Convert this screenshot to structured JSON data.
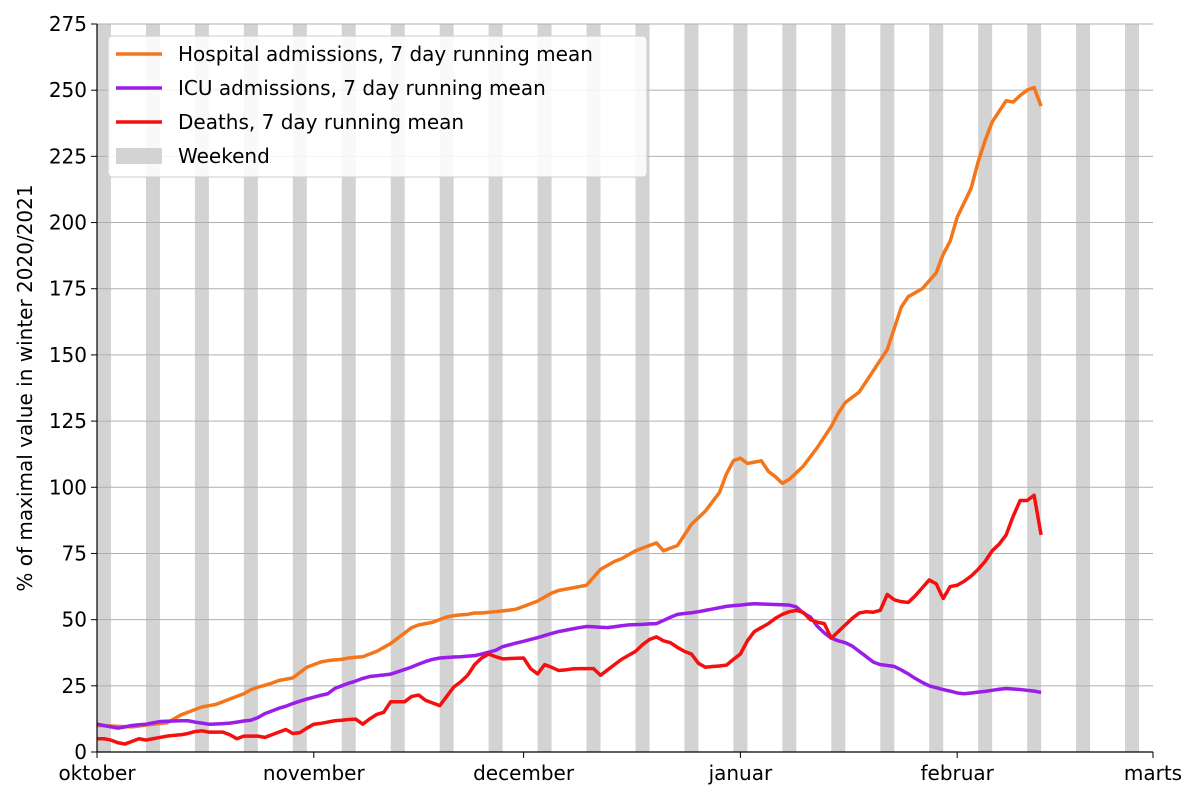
{
  "chart_data": {
    "type": "line",
    "ylabel": "% of maximal value in winter 2020/2021",
    "xlim": [
      0,
      151
    ],
    "xticks": [
      {
        "value": 0,
        "label": "oktober"
      },
      {
        "value": 31,
        "label": "november"
      },
      {
        "value": 61,
        "label": "december"
      },
      {
        "value": 92,
        "label": "januar"
      },
      {
        "value": 123,
        "label": "februar"
      },
      {
        "value": 151,
        "label": "marts"
      }
    ],
    "ylim": [
      0,
      275
    ],
    "yticks": [
      0,
      25,
      50,
      75,
      100,
      125,
      150,
      175,
      200,
      225,
      250,
      275
    ],
    "grid": true,
    "legend": "upper left",
    "weekend": {
      "name": "Weekend",
      "color": "#d3d3d3",
      "days": 2,
      "starts": [
        0,
        7,
        14,
        21,
        28,
        35,
        42,
        49,
        56,
        63,
        70,
        77,
        84,
        91,
        98,
        105,
        112,
        119,
        126,
        133,
        140,
        147
      ]
    },
    "series": [
      {
        "name": "Hospital admissions, 7 day running mean",
        "color": "#f5761a",
        "values": [
          10,
          9.9,
          9.8,
          9.7,
          9.6,
          9.5,
          9.8,
          10.2,
          10.5,
          10.8,
          11,
          12.5,
          14,
          15,
          16,
          17,
          17.5,
          18,
          19,
          20,
          21,
          22,
          23.5,
          24.5,
          25.2,
          26,
          27,
          27.5,
          28,
          30,
          32,
          33,
          34,
          34.5,
          34.8,
          35,
          35.5,
          35.8,
          36,
          37,
          38,
          39.5,
          41,
          43,
          45,
          47,
          48,
          48.5,
          49,
          50,
          51,
          51.5,
          51.8,
          52,
          52.5,
          52.5,
          52.8,
          53,
          53.3,
          53.6,
          54,
          55,
          56,
          57,
          58.5,
          60,
          61,
          61.5,
          62,
          62.5,
          63,
          66,
          69,
          70.5,
          72,
          73,
          74.5,
          76,
          77,
          78,
          79,
          76,
          77,
          78,
          82,
          86,
          88.5,
          91,
          94.5,
          98,
          105,
          110,
          111,
          109,
          109.5,
          110,
          106,
          104,
          101.5,
          103,
          105.5,
          108,
          111.5,
          115,
          119,
          123,
          128,
          132,
          134,
          136,
          140,
          144,
          148,
          152,
          160,
          168,
          172,
          173.5,
          175,
          178,
          181,
          188,
          193,
          202,
          207.5,
          213,
          223,
          231,
          238,
          242,
          246,
          245.5,
          248,
          250,
          251,
          244
        ]
      },
      {
        "name": "ICU admissions, 7 day running mean",
        "color": "#9b1ee8",
        "values": [
          10.5,
          10,
          9.5,
          9,
          9.5,
          10,
          10.3,
          10.5,
          11,
          11.5,
          11.6,
          11.7,
          11.8,
          11.8,
          11.3,
          10.9,
          10.5,
          10.6,
          10.7,
          10.9,
          11.3,
          11.7,
          12,
          13,
          14.5,
          15.5,
          16.5,
          17.3,
          18.3,
          19.2,
          20,
          20.7,
          21.4,
          22,
          24,
          25,
          26,
          26.8,
          27.8,
          28.5,
          28.8,
          29.1,
          29.4,
          30.3,
          31.2,
          32.1,
          33.2,
          34.2,
          35,
          35.5,
          35.7,
          35.9,
          36,
          36.2,
          36.4,
          37,
          37.7,
          38.4,
          39.8,
          40.5,
          41.2,
          41.8,
          42.5,
          43.2,
          44,
          44.8,
          45.5,
          46,
          46.5,
          47,
          47.4,
          47.3,
          47.1,
          47,
          47.3,
          47.7,
          48,
          48.1,
          48.2,
          48.4,
          48.5,
          49.7,
          50.9,
          52,
          52.3,
          52.6,
          53,
          53.5,
          54,
          54.5,
          55,
          55.3,
          55.5,
          55.8,
          56,
          55.9,
          55.8,
          55.7,
          55.6,
          55.5,
          54.8,
          52.5,
          51,
          47.5,
          45,
          43,
          42,
          41.3,
          40,
          38,
          36,
          34,
          33,
          32.7,
          32.3,
          31,
          29.5,
          27.8,
          26.3,
          25,
          24.3,
          23.6,
          23,
          22.3,
          22,
          22.3,
          22.6,
          22.9,
          23.3,
          23.7,
          24,
          23.8,
          23.6,
          23.3,
          23,
          22.5
        ]
      },
      {
        "name": "Deaths, 7 day running mean",
        "color": "#f50f0f",
        "values": [
          5,
          5,
          4.5,
          3.5,
          3,
          4,
          5,
          4.5,
          5,
          5.5,
          6,
          6.3,
          6.5,
          7,
          7.7,
          8,
          7.5,
          7.5,
          7.5,
          6.5,
          5,
          6,
          6,
          6,
          5.5,
          6.5,
          7.5,
          8.5,
          7,
          7.3,
          9,
          10.5,
          10.8,
          11.3,
          11.8,
          12,
          12.3,
          12.4,
          10.5,
          12.5,
          14.2,
          15,
          19,
          19,
          19,
          21,
          21.5,
          19.5,
          18.5,
          17.5,
          21,
          24.5,
          26.5,
          29,
          33,
          35.5,
          37,
          36,
          35.2,
          35.3,
          35.4,
          35.5,
          31.5,
          29.5,
          33,
          32,
          30.8,
          31,
          31.4,
          31.5,
          31.5,
          31.5,
          29,
          31,
          33,
          35,
          36.5,
          38,
          40.5,
          42.5,
          43.5,
          42,
          41.3,
          39.5,
          38,
          37,
          33.5,
          32,
          32.3,
          32.5,
          32.8,
          35,
          37,
          42,
          45.5,
          47,
          48.5,
          50.5,
          52,
          53,
          53.5,
          52.7,
          50,
          49,
          48.5,
          43,
          45.5,
          48,
          50.5,
          52.5,
          53,
          52.8,
          53.5,
          59.5,
          57.5,
          56.8,
          56.5,
          59,
          62,
          65,
          63.5,
          58,
          62.5,
          63,
          64.5,
          66.5,
          69,
          72,
          76,
          78.5,
          82,
          89,
          95,
          95,
          97,
          82
        ]
      }
    ]
  }
}
